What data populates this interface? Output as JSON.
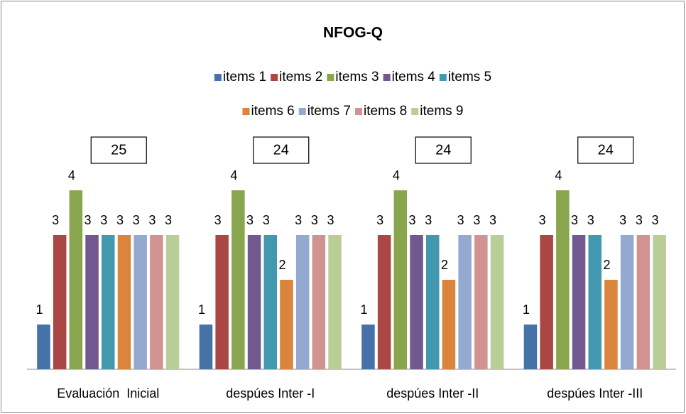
{
  "chart_data": {
    "type": "bar",
    "title": "NFOG-Q",
    "categories": [
      "Evaluación  Inicial",
      "despúes Inter -I",
      "despúes Inter -II",
      "despúes Inter -III"
    ],
    "series": [
      {
        "name": "items 1",
        "color": "#4572A7",
        "values": [
          1,
          1,
          1,
          1
        ]
      },
      {
        "name": "items 2",
        "color": "#AA4643",
        "values": [
          3,
          3,
          3,
          3
        ]
      },
      {
        "name": "items 3",
        "color": "#89A54E",
        "values": [
          4,
          4,
          4,
          4
        ]
      },
      {
        "name": "items 4",
        "color": "#71588F",
        "values": [
          3,
          3,
          3,
          3
        ]
      },
      {
        "name": "items 5",
        "color": "#4198AF",
        "values": [
          3,
          3,
          3,
          3
        ]
      },
      {
        "name": "items 6",
        "color": "#DB843D",
        "values": [
          3,
          2,
          2,
          2
        ]
      },
      {
        "name": "items 7",
        "color": "#93A9CF",
        "values": [
          3,
          3,
          3,
          3
        ]
      },
      {
        "name": "items 8",
        "color": "#D19392",
        "values": [
          3,
          3,
          3,
          3
        ]
      },
      {
        "name": "items 9",
        "color": "#B9CD96",
        "values": [
          3,
          3,
          3,
          3
        ]
      }
    ],
    "totals": [
      25,
      24,
      24,
      24
    ],
    "ylim": [
      0,
      5
    ],
    "legend": "top",
    "grid": false
  }
}
